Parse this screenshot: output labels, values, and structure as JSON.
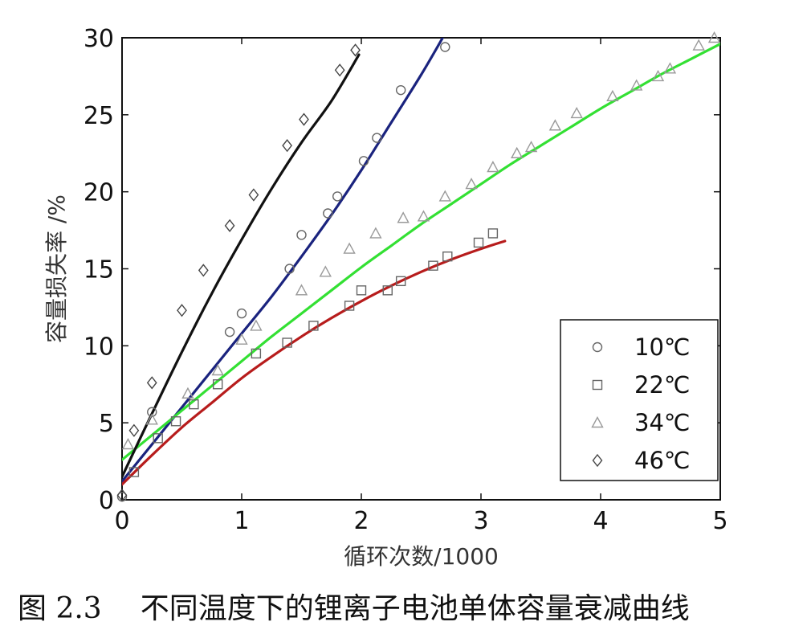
{
  "caption": {
    "figure_number": "图 2.3",
    "text": "不同温度下的锂离子电池单体容量衰减曲线"
  },
  "chart_data": {
    "type": "scatter",
    "xlabel": "循环次数/1000",
    "ylabel": "容量损失率 /%",
    "xlim": [
      0,
      5
    ],
    "ylim": [
      0,
      30
    ],
    "xticks": [
      "0",
      "1",
      "2",
      "3",
      "4",
      "5"
    ],
    "yticks": [
      "0",
      "5",
      "10",
      "15",
      "20",
      "25",
      "30"
    ],
    "grid": false,
    "legend_position": "bottom-right",
    "series": [
      {
        "name": "10℃",
        "marker": "circle",
        "line_color": "#1a237e",
        "marker_color": "#666666",
        "points": [
          [
            0,
            0.2
          ],
          [
            0.25,
            5.7
          ],
          [
            0.9,
            10.9
          ],
          [
            1.0,
            12.1
          ],
          [
            1.4,
            15.0
          ],
          [
            1.5,
            17.2
          ],
          [
            1.72,
            18.6
          ],
          [
            1.8,
            19.7
          ],
          [
            2.02,
            22.0
          ],
          [
            2.13,
            23.5
          ],
          [
            2.33,
            26.6
          ],
          [
            2.7,
            29.4
          ]
        ],
        "fit": [
          [
            0,
            1.2
          ],
          [
            0.25,
            3.6
          ],
          [
            0.5,
            6.0
          ],
          [
            0.75,
            8.4
          ],
          [
            1.0,
            10.8
          ],
          [
            1.25,
            13.2
          ],
          [
            1.5,
            15.8
          ],
          [
            1.75,
            18.5
          ],
          [
            2.0,
            21.4
          ],
          [
            2.25,
            24.5
          ],
          [
            2.5,
            27.6
          ],
          [
            2.68,
            30.0
          ]
        ]
      },
      {
        "name": "22℃",
        "marker": "square",
        "line_color": "#b71c1c",
        "marker_color": "#666666",
        "points": [
          [
            0.1,
            1.8
          ],
          [
            0.3,
            4.0
          ],
          [
            0.45,
            5.1
          ],
          [
            0.6,
            6.2
          ],
          [
            0.8,
            7.5
          ],
          [
            1.12,
            9.5
          ],
          [
            1.38,
            10.2
          ],
          [
            1.6,
            11.3
          ],
          [
            1.9,
            12.6
          ],
          [
            2.0,
            13.6
          ],
          [
            2.22,
            13.6
          ],
          [
            2.33,
            14.2
          ],
          [
            2.6,
            15.2
          ],
          [
            2.72,
            15.8
          ],
          [
            2.98,
            16.7
          ],
          [
            3.1,
            17.3
          ]
        ],
        "fit": [
          [
            0,
            1.0
          ],
          [
            0.25,
            2.9
          ],
          [
            0.5,
            4.7
          ],
          [
            0.75,
            6.3
          ],
          [
            1.0,
            7.9
          ],
          [
            1.25,
            9.3
          ],
          [
            1.5,
            10.6
          ],
          [
            1.75,
            11.8
          ],
          [
            2.0,
            12.9
          ],
          [
            2.25,
            13.9
          ],
          [
            2.5,
            14.8
          ],
          [
            2.75,
            15.6
          ],
          [
            3.0,
            16.3
          ],
          [
            3.2,
            16.8
          ]
        ]
      },
      {
        "name": "34℃",
        "marker": "triangle",
        "line_color": "#33e033",
        "marker_color": "#999999",
        "points": [
          [
            0.05,
            3.6
          ],
          [
            0.25,
            5.2
          ],
          [
            0.55,
            6.9
          ],
          [
            0.8,
            8.4
          ],
          [
            1.0,
            10.4
          ],
          [
            1.12,
            11.3
          ],
          [
            1.5,
            13.6
          ],
          [
            1.7,
            14.8
          ],
          [
            1.9,
            16.3
          ],
          [
            2.12,
            17.3
          ],
          [
            2.35,
            18.3
          ],
          [
            2.52,
            18.4
          ],
          [
            2.7,
            19.7
          ],
          [
            2.92,
            20.5
          ],
          [
            3.1,
            21.6
          ],
          [
            3.3,
            22.5
          ],
          [
            3.42,
            22.9
          ],
          [
            3.62,
            24.3
          ],
          [
            3.8,
            25.1
          ],
          [
            4.1,
            26.2
          ],
          [
            4.3,
            26.9
          ],
          [
            4.48,
            27.5
          ],
          [
            4.58,
            28.0
          ],
          [
            4.82,
            29.5
          ],
          [
            4.95,
            30.0
          ]
        ],
        "fit": [
          [
            0,
            2.6
          ],
          [
            0.25,
            4.2
          ],
          [
            0.5,
            5.8
          ],
          [
            0.75,
            7.4
          ],
          [
            1.0,
            9.0
          ],
          [
            1.25,
            10.6
          ],
          [
            1.5,
            12.1
          ],
          [
            1.75,
            13.6
          ],
          [
            2.0,
            15.1
          ],
          [
            2.25,
            16.5
          ],
          [
            2.5,
            17.9
          ],
          [
            2.75,
            19.2
          ],
          [
            3.0,
            20.5
          ],
          [
            3.25,
            21.8
          ],
          [
            3.5,
            23.0
          ],
          [
            3.75,
            24.2
          ],
          [
            4.0,
            25.4
          ],
          [
            4.25,
            26.5
          ],
          [
            4.5,
            27.6
          ],
          [
            4.75,
            28.6
          ],
          [
            5.0,
            29.6
          ]
        ]
      },
      {
        "name": "46℃",
        "marker": "diamond",
        "line_color": "#111111",
        "marker_color": "#444444",
        "points": [
          [
            0,
            0.3
          ],
          [
            0.1,
            4.5
          ],
          [
            0.25,
            7.6
          ],
          [
            0.5,
            12.3
          ],
          [
            0.68,
            14.9
          ],
          [
            0.9,
            17.8
          ],
          [
            1.1,
            19.8
          ],
          [
            1.38,
            23.0
          ],
          [
            1.52,
            24.7
          ],
          [
            1.82,
            27.9
          ],
          [
            1.95,
            29.2
          ]
        ],
        "fit": [
          [
            0,
            1.5
          ],
          [
            0.25,
            5.6
          ],
          [
            0.5,
            9.6
          ],
          [
            0.75,
            13.4
          ],
          [
            1.0,
            16.9
          ],
          [
            1.25,
            20.2
          ],
          [
            1.5,
            23.2
          ],
          [
            1.75,
            25.9
          ],
          [
            1.98,
            28.9
          ]
        ]
      }
    ]
  }
}
